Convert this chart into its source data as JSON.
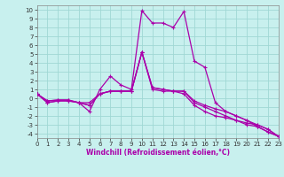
{
  "xlabel": "Windchill (Refroidissement éolien,°C)",
  "xlim": [
    0,
    23
  ],
  "ylim": [
    -4.5,
    10.5
  ],
  "xticks": [
    0,
    1,
    2,
    3,
    4,
    5,
    6,
    7,
    8,
    9,
    10,
    11,
    12,
    13,
    14,
    15,
    16,
    17,
    18,
    19,
    20,
    21,
    22,
    23
  ],
  "yticks": [
    10,
    9,
    8,
    7,
    6,
    5,
    4,
    3,
    2,
    1,
    0,
    -1,
    -2,
    -3,
    -4
  ],
  "background_color": "#c8f0ee",
  "grid_color": "#a0d8d4",
  "line_color": "#aa00aa",
  "line1_y": [
    0.5,
    -0.3,
    -0.2,
    -0.2,
    -0.5,
    -1.5,
    1.0,
    2.5,
    1.5,
    1.0,
    9.9,
    8.5,
    8.5,
    8.0,
    9.8,
    4.2,
    3.5,
    -0.5,
    -1.5,
    -2.0,
    -2.5,
    -3.2,
    -3.8,
    -4.3
  ],
  "line2_y": [
    0.5,
    -0.5,
    -0.3,
    -0.3,
    -0.5,
    -0.8,
    0.5,
    0.8,
    0.8,
    0.8,
    5.2,
    1.2,
    1.0,
    0.8,
    0.8,
    -0.3,
    -0.8,
    -1.2,
    -1.5,
    -2.0,
    -2.5,
    -3.0,
    -3.5,
    -4.3
  ],
  "line3_y": [
    0.5,
    -0.5,
    -0.3,
    -0.3,
    -0.5,
    -0.8,
    0.5,
    0.8,
    0.8,
    0.8,
    5.2,
    1.2,
    1.0,
    0.8,
    0.8,
    -0.5,
    -1.0,
    -1.5,
    -2.0,
    -2.5,
    -3.0,
    -3.2,
    -3.8,
    -4.3
  ],
  "line4_y": [
    0.5,
    -0.3,
    -0.2,
    -0.2,
    -0.5,
    -0.5,
    0.5,
    0.8,
    0.8,
    0.8,
    5.2,
    1.0,
    0.8,
    0.8,
    0.5,
    -0.8,
    -1.5,
    -2.0,
    -2.2,
    -2.5,
    -2.8,
    -3.0,
    -3.5,
    -4.3
  ],
  "tick_fontsize": 5,
  "xlabel_fontsize": 5.5
}
